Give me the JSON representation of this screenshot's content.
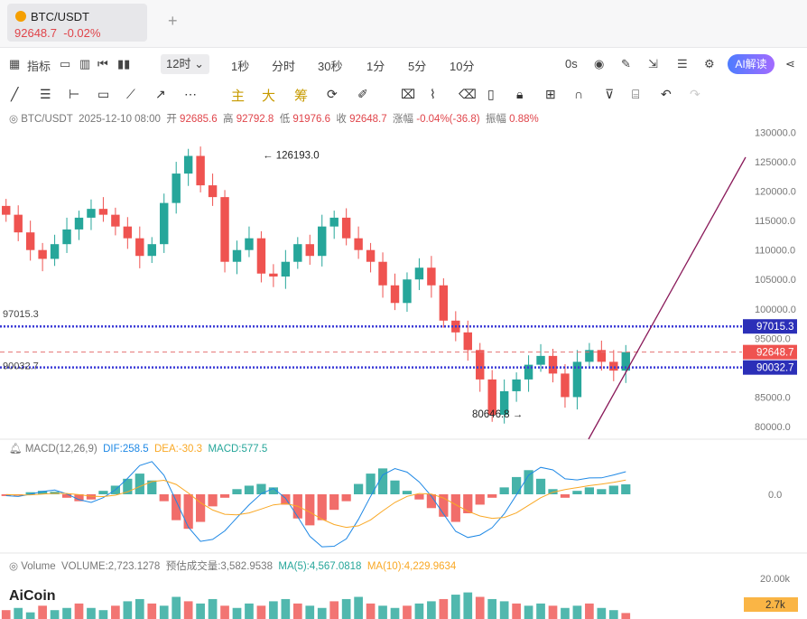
{
  "tab": {
    "symbol": "BTC/USDT",
    "price": "92648.7",
    "change": "-0.02%",
    "add": "+"
  },
  "toolbar": {
    "indicator": "指标",
    "interval_selected": "12时",
    "intervals": [
      "1秒",
      "分时",
      "30秒",
      "1分",
      "5分",
      "10分"
    ],
    "countdown": "0s",
    "ai_label": "AI解读"
  },
  "draw_tools": {
    "main": "主",
    "big": "大",
    "chip": "筹"
  },
  "ohlc": {
    "symbol": "BTC/USDT",
    "datetime": "2025-12-10 08:00",
    "open_label": "开",
    "open": "92685.6",
    "high_label": "高",
    "high": "92792.8",
    "low_label": "低",
    "low": "91976.6",
    "close_label": "收",
    "close": "92648.7",
    "change_label": "涨幅",
    "change": "-0.04%(-36.8)",
    "amp_label": "振幅",
    "amp": "0.88%"
  },
  "price_axis": {
    "ticks": [
      "130000.0",
      "125000.0",
      "120000.0",
      "115000.0",
      "110000.0",
      "105000.0",
      "100000.0",
      "95000.0",
      "90000.0",
      "85000.0",
      "80000.0"
    ],
    "upper_line": "97015.3",
    "current": "92648.7",
    "lower_line": "90032.7",
    "left_upper": "97015.3",
    "left_lower": "90032.7"
  },
  "annotations": {
    "high_mark": "126193.0",
    "low_mark": "80646.8"
  },
  "macd": {
    "title": "MACD(12,26,9)",
    "dif": "DIF:258.5",
    "dea": "DEA:-30.3",
    "macd": "MACD:577.5",
    "zero_label": "0.0"
  },
  "volume": {
    "title": "Volume",
    "vol": "VOLUME:2,723.1278",
    "est": "预估成交量:3,582.9538",
    "ma5": "MA(5):4,567.0818",
    "ma10": "MA(10):4,229.9634",
    "axis_top": "20.00k",
    "current": "2.7k"
  },
  "brand": "AiCoin",
  "colors": {
    "up": "#26a69a",
    "down": "#ef5350",
    "line_blue": "#3b3bd6",
    "trend": "#8a1a5a",
    "dif": "#1e88e5",
    "dea": "#f9a825"
  },
  "chart_data": {
    "type": "candlestick",
    "y_range": [
      78000,
      131000
    ],
    "key_points": [
      {
        "label": "high",
        "value": 126193.0
      },
      {
        "label": "low",
        "value": 80646.8
      },
      {
        "label": "current",
        "value": 92648.7
      }
    ],
    "horizontal_lines": [
      97015.3,
      90032.7
    ],
    "close_path": [
      116000,
      113000,
      110000,
      108500,
      111000,
      113500,
      115500,
      117000,
      116000,
      114000,
      112000,
      109000,
      111000,
      118000,
      123000,
      126000,
      121000,
      119000,
      108000,
      110000,
      112000,
      106000,
      105500,
      108000,
      111000,
      109000,
      114000,
      115500,
      112000,
      110000,
      108000,
      104000,
      101000,
      105000,
      107000,
      104000,
      98000,
      96000,
      93000,
      88000,
      82000,
      86000,
      88000,
      90500,
      92000,
      89000,
      85000,
      91000,
      93000,
      91000,
      89500,
      92648.7
    ],
    "macd_hist": [
      -100,
      -80,
      120,
      200,
      150,
      -200,
      -400,
      -300,
      200,
      500,
      900,
      1200,
      800,
      -400,
      -1500,
      -2000,
      -1600,
      -700,
      -200,
      300,
      500,
      600,
      400,
      -600,
      -1400,
      -1800,
      -1500,
      -900,
      -400,
      600,
      1200,
      1500,
      800,
      200,
      -300,
      -800,
      -1300,
      -1600,
      -1100,
      -600,
      -200,
      400,
      1000,
      1400,
      900,
      300,
      -200,
      200,
      400,
      300,
      500,
      577.5
    ],
    "volume": [
      4,
      5,
      3,
      6,
      4,
      5,
      7,
      5,
      4,
      6,
      8,
      9,
      7,
      6,
      10,
      8,
      7,
      9,
      6,
      5,
      7,
      6,
      8,
      9,
      7,
      6,
      5,
      8,
      9,
      10,
      7,
      6,
      5,
      6,
      7,
      8,
      9,
      11,
      12,
      10,
      9,
      8,
      7,
      6,
      7,
      6,
      5,
      6,
      7,
      5,
      4,
      2.7
    ]
  }
}
